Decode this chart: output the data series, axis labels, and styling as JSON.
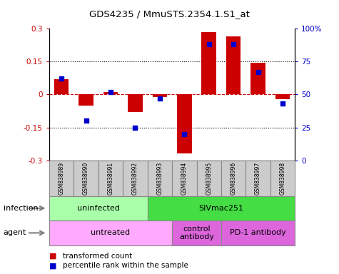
{
  "title": "GDS4235 / MmuSTS.2354.1.S1_at",
  "samples": [
    "GSM838989",
    "GSM838990",
    "GSM838991",
    "GSM838992",
    "GSM838993",
    "GSM838994",
    "GSM838995",
    "GSM838996",
    "GSM838997",
    "GSM838998"
  ],
  "transformed_count": [
    0.07,
    -0.05,
    0.01,
    -0.08,
    -0.01,
    -0.27,
    0.285,
    0.265,
    0.145,
    -0.02
  ],
  "percentile_rank": [
    62,
    30,
    52,
    25,
    47,
    20,
    88,
    88,
    67,
    43
  ],
  "ylim": [
    -0.3,
    0.3
  ],
  "yticks_left": [
    -0.3,
    -0.15,
    0,
    0.15,
    0.3
  ],
  "yticks_right": [
    0,
    25,
    50,
    75,
    100
  ],
  "bar_color": "#cc0000",
  "dot_color": "#0000cc",
  "zero_line_color": "#cc0000",
  "infection_data": [
    {
      "start": 0,
      "end": 3,
      "label": "uninfected",
      "color": "#aaffaa"
    },
    {
      "start": 4,
      "end": 9,
      "label": "SIVmac251",
      "color": "#44dd44"
    }
  ],
  "agent_data": [
    {
      "start": 0,
      "end": 4,
      "label": "untreated",
      "color": "#ffaaff"
    },
    {
      "start": 5,
      "end": 6,
      "label": "control\nantibody",
      "color": "#dd66dd"
    },
    {
      "start": 7,
      "end": 9,
      "label": "PD-1 antibody",
      "color": "#dd66dd"
    }
  ],
  "legend_items": [
    {
      "label": "transformed count",
      "color": "#cc0000"
    },
    {
      "label": "percentile rank within the sample",
      "color": "#0000cc"
    }
  ],
  "infection_label": "infection",
  "agent_label": "agent",
  "sample_box_color": "#cccccc",
  "sample_box_edge": "#888888"
}
